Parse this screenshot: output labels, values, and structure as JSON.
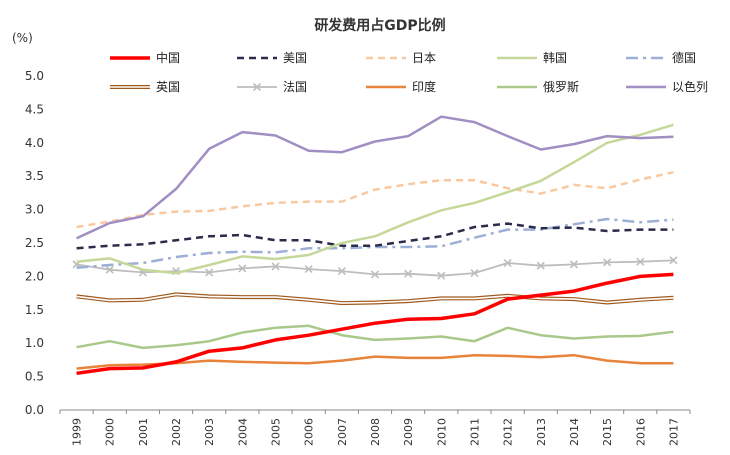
{
  "chart_data": {
    "type": "line",
    "title": "研发费用占GDP比例",
    "ylabel": "(%)",
    "xlabel": "",
    "ylim": [
      0,
      5
    ],
    "yticks": [
      "0.0",
      "0.5",
      "1.0",
      "1.5",
      "2.0",
      "2.5",
      "3.0",
      "3.5",
      "4.0",
      "4.5",
      "5.0"
    ],
    "categories": [
      "1999",
      "2000",
      "2001",
      "2002",
      "2003",
      "2004",
      "2005",
      "2006",
      "2007",
      "2008",
      "2009",
      "2010",
      "2011",
      "2012",
      "2013",
      "2014",
      "2015",
      "2016",
      "2017"
    ],
    "grid": false,
    "legend_position": "top",
    "series": [
      {
        "name": "中国",
        "color": "#ff0000",
        "style": "solid-thick",
        "values": [
          0.55,
          0.62,
          0.63,
          0.72,
          0.88,
          0.93,
          1.05,
          1.12,
          1.21,
          1.3,
          1.36,
          1.37,
          1.44,
          1.66,
          1.72,
          1.78,
          1.9,
          2.0,
          2.03
        ]
      },
      {
        "name": "美国",
        "color": "#2b2b4c",
        "style": "dash",
        "values": [
          2.42,
          2.46,
          2.48,
          2.54,
          2.6,
          2.62,
          2.54,
          2.54,
          2.46,
          2.46,
          2.53,
          2.6,
          2.74,
          2.79,
          2.72,
          2.73,
          2.68,
          2.7,
          2.7
        ]
      },
      {
        "name": "日本",
        "color": "#f8c9a0",
        "style": "dash-light",
        "values": [
          2.74,
          2.82,
          2.92,
          2.97,
          2.98,
          3.05,
          3.1,
          3.12,
          3.12,
          3.3,
          3.38,
          3.44,
          3.44,
          3.32,
          3.24,
          3.37,
          3.32,
          3.45,
          3.56
        ]
      },
      {
        "name": "韩国",
        "color": "#c5d89a",
        "style": "solid",
        "values": [
          2.22,
          2.27,
          2.1,
          2.05,
          2.17,
          2.3,
          2.26,
          2.32,
          2.5,
          2.6,
          2.81,
          2.99,
          3.1,
          3.26,
          3.43,
          3.71,
          4.0,
          4.12,
          4.27
        ]
      },
      {
        "name": "德国",
        "color": "#9dafd6",
        "style": "dashdot",
        "values": [
          2.13,
          2.17,
          2.2,
          2.29,
          2.35,
          2.37,
          2.36,
          2.42,
          2.42,
          2.44,
          2.44,
          2.45,
          2.58,
          2.7,
          2.7,
          2.78,
          2.86,
          2.81,
          2.85
        ]
      },
      {
        "name": "英国",
        "color": "#a05a1e",
        "style": "double",
        "values": [
          1.7,
          1.64,
          1.65,
          1.73,
          1.7,
          1.69,
          1.69,
          1.65,
          1.6,
          1.61,
          1.63,
          1.67,
          1.67,
          1.71,
          1.67,
          1.66,
          1.61,
          1.65,
          1.68
        ]
      },
      {
        "name": "法国",
        "color": "#bdbdbd",
        "style": "cross",
        "values": [
          2.18,
          2.1,
          2.06,
          2.08,
          2.06,
          2.12,
          2.15,
          2.11,
          2.08,
          2.03,
          2.04,
          2.01,
          2.05,
          2.2,
          2.16,
          2.18,
          2.21,
          2.22,
          2.24
        ]
      },
      {
        "name": "印度",
        "color": "#e8833a",
        "style": "solid",
        "values": [
          0.62,
          0.67,
          0.68,
          0.7,
          0.74,
          0.72,
          0.71,
          0.7,
          0.74,
          0.8,
          0.78,
          0.78,
          0.82,
          0.81,
          0.79,
          0.82,
          0.74,
          0.7,
          0.7
        ]
      },
      {
        "name": "俄罗斯",
        "color": "#a9c98b",
        "style": "solid",
        "values": [
          0.94,
          1.03,
          0.93,
          0.97,
          1.03,
          1.16,
          1.23,
          1.26,
          1.12,
          1.05,
          1.07,
          1.1,
          1.03,
          1.23,
          1.12,
          1.07,
          1.1,
          1.11,
          1.17
        ]
      },
      {
        "name": "以色列",
        "color": "#a18ec2",
        "style": "solid",
        "values": [
          2.57,
          2.8,
          2.9,
          3.31,
          3.91,
          4.16,
          4.11,
          3.88,
          3.86,
          4.02,
          4.1,
          4.39,
          4.31,
          4.1,
          3.9,
          3.98,
          4.1,
          4.07,
          4.09
        ]
      }
    ]
  }
}
